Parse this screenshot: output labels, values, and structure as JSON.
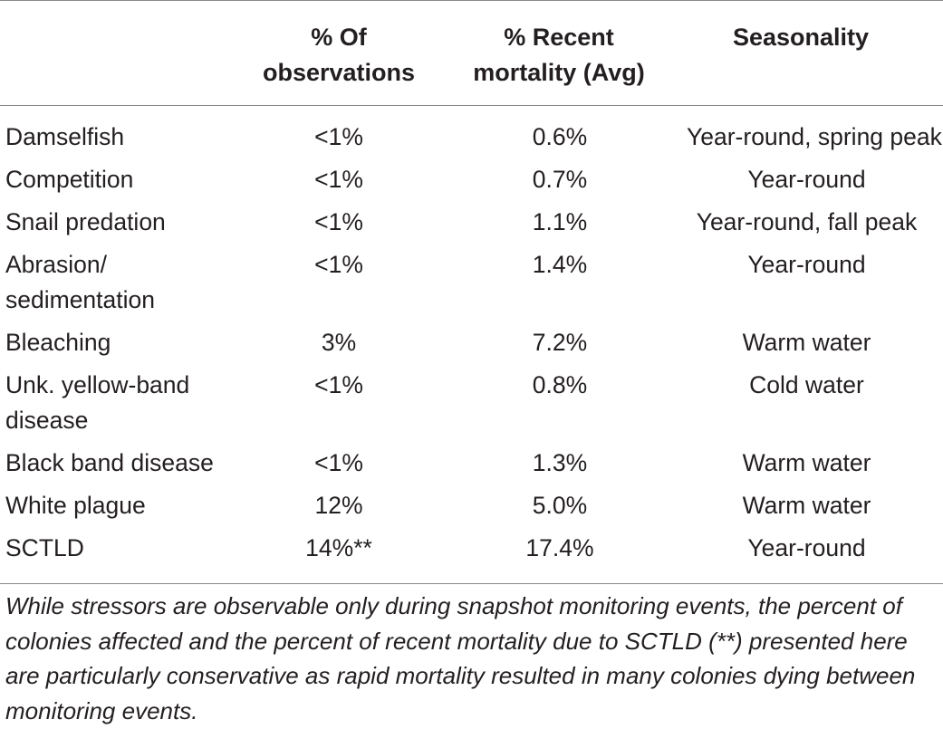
{
  "table": {
    "headers": [
      {
        "line1": "",
        "line2": ""
      },
      {
        "line1": "% Of",
        "line2": "observations"
      },
      {
        "line1": "% Recent",
        "line2": "mortality (Avg)"
      },
      {
        "line1": "Seasonality",
        "line2": ""
      }
    ],
    "rows": [
      {
        "stressor": "Damselfish",
        "observations": "<1%",
        "mortality": "0.6%",
        "seasonality": "Year-round, spring peak"
      },
      {
        "stressor": "Competition",
        "observations": "<1%",
        "mortality": "0.7%",
        "seasonality": "Year-round"
      },
      {
        "stressor": "Snail predation",
        "observations": "<1%",
        "mortality": "1.1%",
        "seasonality": "Year-round, fall peak"
      },
      {
        "stressor": "Abrasion/ sedimentation",
        "observations": "<1%",
        "mortality": "1.4%",
        "seasonality": "Year-round"
      },
      {
        "stressor": "Bleaching",
        "observations": "3%",
        "mortality": "7.2%",
        "seasonality": "Warm water"
      },
      {
        "stressor": "Unk. yellow-band disease",
        "observations": "<1%",
        "mortality": "0.8%",
        "seasonality": "Cold water"
      },
      {
        "stressor": "Black band disease",
        "observations": "<1%",
        "mortality": "1.3%",
        "seasonality": "Warm water"
      },
      {
        "stressor": "White plague",
        "observations": "12%",
        "mortality": "5.0%",
        "seasonality": "Warm water"
      },
      {
        "stressor": "SCTLD",
        "observations": "14%**",
        "mortality": "17.4%",
        "seasonality": "Year-round"
      }
    ],
    "footnote": "While stressors are observable only during snapshot monitoring events, the percent of colonies affected and the percent of recent mortality due to SCTLD (**) presented here are particularly conservative as rapid mortality resulted in many colonies dying between monitoring events."
  }
}
